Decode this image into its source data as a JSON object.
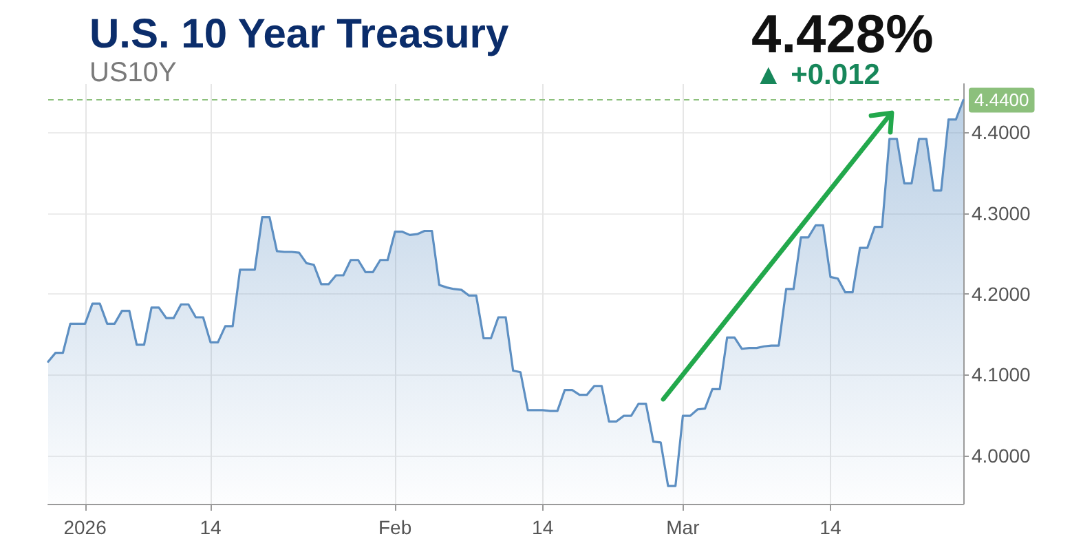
{
  "chart_data": {
    "type": "area",
    "title": "U.S. 10 Year Treasury",
    "subtitle": "US10Y",
    "annotations": [
      "4.428%",
      "▲ +0.012"
    ],
    "categories": [
      null,
      null,
      null,
      null,
      null,
      "2026",
      null,
      null,
      null,
      null,
      null,
      null,
      null,
      null,
      null,
      null,
      null,
      null,
      null,
      null,
      null,
      null,
      "14",
      null,
      null,
      null,
      null,
      null,
      null,
      null,
      null,
      null,
      null,
      null,
      null,
      null,
      null,
      null,
      null,
      null,
      null,
      null,
      null,
      null,
      null,
      null,
      null,
      "Feb",
      null,
      null,
      null,
      null,
      null,
      null,
      null,
      null,
      null,
      null,
      null,
      null,
      null,
      null,
      null,
      null,
      null,
      null,
      null,
      "14",
      null,
      null,
      null,
      null,
      null,
      null,
      null,
      null,
      null,
      null,
      null,
      null,
      null,
      null,
      null,
      null,
      null,
      null,
      "Mar",
      null,
      null,
      null,
      null,
      null,
      null,
      null,
      null,
      null,
      null,
      null,
      null,
      null,
      null,
      null,
      null,
      null,
      null,
      null,
      "14",
      null,
      null,
      null,
      null,
      null,
      null,
      null,
      null,
      null,
      null,
      null,
      null,
      null,
      null,
      null,
      null,
      null,
      null
    ],
    "values": [
      4.116,
      4.127,
      4.127,
      4.163,
      4.163,
      4.163,
      4.188,
      4.188,
      4.163,
      4.163,
      4.179,
      4.179,
      4.137,
      4.137,
      4.183,
      4.183,
      4.17,
      4.17,
      4.187,
      4.187,
      4.171,
      4.171,
      4.14,
      4.14,
      4.16,
      4.16,
      4.23,
      4.23,
      4.23,
      4.295,
      4.295,
      4.253,
      4.252,
      4.252,
      4.251,
      4.238,
      4.236,
      4.212,
      4.212,
      4.223,
      4.223,
      4.242,
      4.242,
      4.227,
      4.227,
      4.242,
      4.242,
      4.277,
      4.277,
      4.273,
      4.274,
      4.278,
      4.278,
      4.211,
      4.208,
      4.206,
      4.205,
      4.198,
      4.198,
      4.145,
      4.145,
      4.171,
      4.171,
      4.105,
      4.103,
      4.056,
      4.056,
      4.056,
      4.055,
      4.055,
      4.081,
      4.081,
      4.075,
      4.075,
      4.086,
      4.086,
      4.042,
      4.042,
      4.049,
      4.049,
      4.064,
      4.064,
      4.017,
      4.016,
      3.962,
      3.962,
      4.049,
      4.049,
      4.057,
      4.058,
      4.082,
      4.082,
      4.146,
      4.146,
      4.132,
      4.133,
      4.133,
      4.135,
      4.136,
      4.136,
      4.206,
      4.206,
      4.27,
      4.27,
      4.285,
      4.285,
      4.221,
      4.219,
      4.202,
      4.202,
      4.257,
      4.257,
      4.283,
      4.283,
      4.392,
      4.392,
      4.337,
      4.337,
      4.392,
      4.392,
      4.328,
      4.328,
      4.416,
      4.416,
      4.44
    ],
    "color": "#5d8fc2",
    "marker": "none",
    "ylim": [
      3.94,
      4.46
    ],
    "yticks": [
      {
        "value": 4,
        "label": "4.0000"
      },
      {
        "value": 4.1,
        "label": "4.1000"
      },
      {
        "value": 4.2,
        "label": "4.2000"
      },
      {
        "value": 4.3,
        "label": "4.3000"
      },
      {
        "value": 4.4,
        "label": "4.4000"
      }
    ],
    "grid": true,
    "ref_lines": [
      {
        "axis": "y",
        "value": 4.44,
        "label": "4.4400",
        "color": "#8cc07c",
        "line_style": "dashed"
      }
    ]
  }
}
